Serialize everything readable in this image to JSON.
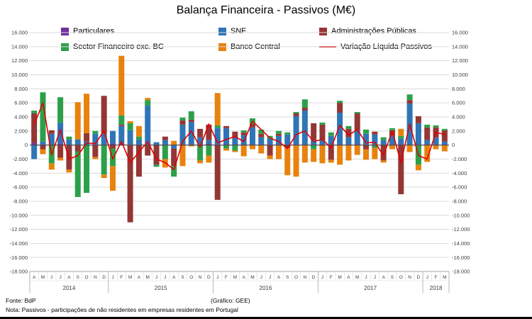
{
  "title": "Balança Financeira - Passivos (M€)",
  "legend": {
    "items": [
      {
        "label": "Particulares",
        "color": "#7030A0",
        "type": "bar"
      },
      {
        "label": "SNF",
        "color": "#2E75B6",
        "type": "bar"
      },
      {
        "label": "Administrações Públicas",
        "color": "#943634",
        "type": "bar"
      },
      {
        "label": "Sector Financeiro exc. BC",
        "color": "#2CA049",
        "type": "bar"
      },
      {
        "label": "Banco Central",
        "color": "#E8820D",
        "type": "bar"
      },
      {
        "label": "Variação Líquida Passivos",
        "color": "#E00000",
        "type": "line"
      }
    ]
  },
  "footer": {
    "source": "Fonte: BdP",
    "credit": "(Gráfico: GEE)",
    "note": "Nota: Passivos - participações de não residentes em empresas residentes em Portugal"
  },
  "chart_data": {
    "type": "bar",
    "subtype": "stacked-bars-with-line",
    "title": "Balança Financeira - Passivos (M€)",
    "unit": "M€",
    "grid": true,
    "legend_position": "top",
    "y_axis": {
      "min": -18000,
      "max": 16000,
      "step": 2000,
      "mirrored_right": true
    },
    "month_labels": [
      "A",
      "M",
      "J",
      "J",
      "A",
      "S",
      "O",
      "N",
      "D",
      "J",
      "F",
      "M",
      "A",
      "M",
      "J",
      "J",
      "A",
      "S",
      "O",
      "N",
      "D",
      "J",
      "F",
      "M",
      "A",
      "M",
      "J",
      "J",
      "A",
      "S",
      "O",
      "N",
      "D",
      "J",
      "F",
      "M",
      "A",
      "M",
      "J",
      "J",
      "A",
      "S",
      "O",
      "N",
      "D",
      "J",
      "F",
      "M"
    ],
    "year_groups": [
      {
        "label": "2014",
        "count": 9
      },
      {
        "label": "2015",
        "count": 12
      },
      {
        "label": "2016",
        "count": 12
      },
      {
        "label": "2017",
        "count": 12
      },
      {
        "label": "2018",
        "count": 3
      }
    ],
    "series": [
      {
        "name": "Particulares",
        "color": "#7030A0",
        "values": [
          300,
          100,
          0,
          200,
          0,
          100,
          0,
          100,
          0,
          200,
          200,
          100,
          100,
          100,
          0,
          100,
          0,
          100,
          100,
          100,
          200,
          100,
          100,
          100,
          100,
          100,
          100,
          100,
          100,
          100,
          100,
          100,
          100,
          100,
          100,
          100,
          100,
          100,
          100,
          100,
          100,
          100,
          100,
          100,
          100,
          100,
          100,
          100
        ]
      },
      {
        "name": "SNF",
        "color": "#2E75B6",
        "values": [
          -2000,
          400,
          1600,
          3000,
          800,
          700,
          500,
          1500,
          1600,
          1800,
          2500,
          2000,
          700,
          5500,
          400,
          600,
          -500,
          2800,
          3200,
          1000,
          500,
          2300,
          2300,
          1000,
          1300,
          2400,
          1000,
          800,
          1200,
          1400,
          4000,
          4800,
          600,
          600,
          1200,
          4500,
          1000,
          2000,
          1500,
          1400,
          600,
          1200,
          800,
          5800,
          3000,
          600,
          1000,
          400
        ]
      },
      {
        "name": "Administrações Públicas",
        "color": "#943634",
        "values": [
          4200,
          -600,
          500,
          -1800,
          -3500,
          -900,
          1200,
          -1700,
          5400,
          -500,
          200,
          -11000,
          -4500,
          -1500,
          -2800,
          500,
          -2500,
          600,
          300,
          1200,
          2200,
          -7800,
          300,
          800,
          400,
          500,
          500,
          -1500,
          300,
          -400,
          400,
          400,
          2400,
          2200,
          -2100,
          1400,
          1200,
          2400,
          -600,
          400,
          -2200,
          800,
          -7000,
          500,
          1000,
          1800,
          1400,
          1600
        ]
      },
      {
        "name": "Sector Financeiro exc. BC",
        "color": "#2CA049",
        "values": [
          400,
          7000,
          -2600,
          3600,
          400,
          -6500,
          -6800,
          400,
          -4200,
          -2500,
          1300,
          1000,
          400,
          800,
          -300,
          -2000,
          -1500,
          400,
          1200,
          -2200,
          -1500,
          400,
          -500,
          -800,
          300,
          800,
          600,
          400,
          400,
          300,
          200,
          1200,
          -600,
          300,
          500,
          300,
          400,
          200,
          600,
          -400,
          400,
          300,
          400,
          800,
          -2800,
          400,
          300,
          200
        ]
      },
      {
        "name": "Banco Central",
        "color": "#E8820D",
        "values": [
          0,
          -700,
          -900,
          -400,
          -400,
          5300,
          5600,
          -300,
          -500,
          -3500,
          8500,
          300,
          1500,
          300,
          0,
          -1200,
          600,
          -3000,
          -200,
          -400,
          -1000,
          4600,
          -300,
          -200,
          -1600,
          -600,
          -1200,
          -500,
          -2000,
          -3900,
          -4500,
          -2500,
          -1800,
          -2600,
          -400,
          -2800,
          -2200,
          -1400,
          -1500,
          -1600,
          -300,
          -600,
          1000,
          -1000,
          -800,
          -2400,
          -600,
          -900
        ]
      }
    ],
    "line_series": {
      "name": "Variação Líquida Passivos",
      "color": "#E00000",
      "values": [
        2900,
        6000,
        -1400,
        2200,
        -2000,
        -1500,
        300,
        200,
        2000,
        -2000,
        500,
        -2500,
        -1000,
        500,
        -2000,
        -2500,
        -3500,
        500,
        2000,
        -300,
        3000,
        300,
        800,
        1200,
        500,
        3400,
        2200,
        1000,
        500,
        -500,
        1500,
        2000,
        500,
        800,
        -400,
        2800,
        1400,
        2200,
        300,
        400,
        -1500,
        2000,
        -2500,
        3000,
        -1500,
        -2000,
        1800,
        1500
      ]
    }
  }
}
